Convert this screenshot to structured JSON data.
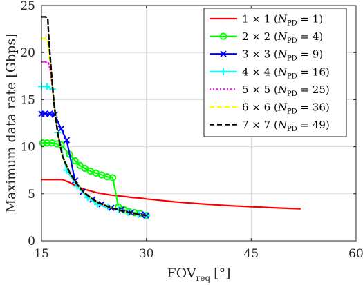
{
  "chart_data": {
    "type": "line",
    "xlabel": {
      "main": "FOV",
      "sub": "req",
      "unit": "[°]"
    },
    "ylabel": "Maximum data rate [Gbps]",
    "xlim": [
      15,
      60
    ],
    "ylim": [
      0,
      25
    ],
    "xticks": [
      15,
      30,
      45,
      60
    ],
    "yticks": [
      0,
      5,
      10,
      15,
      20,
      25
    ],
    "grid": true,
    "legend_position": "top-right",
    "series": [
      {
        "label": "1 × 1 (",
        "label_var": "N",
        "label_sub": "PD",
        "label_tail": " = 1)",
        "color": "#ff0000",
        "marker": "none",
        "dash": "solid",
        "points": [
          [
            15,
            6.5
          ],
          [
            16,
            6.5
          ],
          [
            17,
            6.5
          ],
          [
            18,
            6.5
          ],
          [
            19,
            6.2
          ],
          [
            20,
            5.8
          ],
          [
            21,
            5.5
          ],
          [
            22,
            5.3
          ],
          [
            23,
            5.1
          ],
          [
            24,
            4.98
          ],
          [
            25,
            4.85
          ],
          [
            26,
            4.78
          ],
          [
            27,
            4.7
          ],
          [
            28,
            4.6
          ],
          [
            29,
            4.55
          ],
          [
            30,
            4.45
          ],
          [
            32,
            4.3
          ],
          [
            34,
            4.15
          ],
          [
            36,
            4.03
          ],
          [
            38,
            3.92
          ],
          [
            40,
            3.82
          ],
          [
            42,
            3.73
          ],
          [
            44,
            3.66
          ],
          [
            46,
            3.59
          ],
          [
            48,
            3.52
          ],
          [
            50,
            3.45
          ],
          [
            52,
            3.4
          ]
        ]
      },
      {
        "label": "2 × 2 (",
        "label_var": "N",
        "label_sub": "PD",
        "label_tail": " = 4)",
        "color": "#00ff00",
        "marker": "circle",
        "dash": "solid",
        "points": [
          [
            15.2,
            10.4
          ],
          [
            15.8,
            10.4
          ],
          [
            16.5,
            10.4
          ],
          [
            17.2,
            10.3
          ],
          [
            17.8,
            10.2
          ],
          [
            19,
            9.2
          ],
          [
            19.8,
            8.5
          ],
          [
            20.5,
            8.0
          ],
          [
            21.2,
            7.7
          ],
          [
            22,
            7.4
          ],
          [
            22.8,
            7.2
          ],
          [
            23.6,
            7.0
          ],
          [
            24.4,
            6.8
          ],
          [
            25.2,
            6.7
          ],
          [
            26,
            3.6
          ],
          [
            26.8,
            3.3
          ],
          [
            27.5,
            3.1
          ],
          [
            28.3,
            3.0
          ],
          [
            29.1,
            2.9
          ],
          [
            30,
            2.7
          ]
        ]
      },
      {
        "label": "3 × 3 (",
        "label_var": "N",
        "label_sub": "PD",
        "label_tail": " = 9)",
        "color": "#0000ff",
        "marker": "x",
        "dash": "solid",
        "points": [
          [
            15,
            13.5
          ],
          [
            15.5,
            13.5
          ],
          [
            16.2,
            13.5
          ],
          [
            16.9,
            13.4
          ],
          [
            17.8,
            11.9
          ],
          [
            18.6,
            10.7
          ],
          [
            19.8,
            6.4
          ],
          [
            20.9,
            5.2
          ],
          [
            22.3,
            4.4
          ],
          [
            23.6,
            3.9
          ],
          [
            25,
            3.5
          ],
          [
            26.4,
            3.3
          ],
          [
            27.8,
            3.0
          ],
          [
            29.2,
            2.8
          ],
          [
            30,
            2.7
          ]
        ]
      },
      {
        "label": "4 × 4 (",
        "label_var": "N",
        "label_sub": "PD",
        "label_tail": " = 16)",
        "color": "#00ffff",
        "marker": "plus",
        "dash": "solid",
        "points": [
          [
            15,
            16.4
          ],
          [
            15.8,
            16.4
          ],
          [
            16.6,
            16.1
          ],
          [
            17.3,
            11.5
          ],
          [
            18.6,
            7.5
          ],
          [
            20.1,
            5.8
          ],
          [
            21.6,
            4.6
          ],
          [
            23,
            3.9
          ],
          [
            24.5,
            3.6
          ],
          [
            26,
            3.3
          ],
          [
            27.4,
            3.0
          ],
          [
            28.9,
            2.8
          ],
          [
            30,
            2.7
          ]
        ]
      },
      {
        "label": "5 × 5 (",
        "label_var": "N",
        "label_sub": "PD",
        "label_tail": " = 25)",
        "color": "#ff00ff",
        "marker": "none",
        "dash": "dotted",
        "points": [
          [
            15,
            19.0
          ],
          [
            15.5,
            19.0
          ],
          [
            16,
            18.9
          ],
          [
            16.3,
            18.0
          ],
          [
            16.8,
            14.5
          ],
          [
            17.3,
            11.5
          ],
          [
            18,
            9.0
          ],
          [
            19,
            7.3
          ],
          [
            20,
            6.1
          ],
          [
            21,
            5.2
          ],
          [
            22,
            4.6
          ],
          [
            23,
            4.1
          ],
          [
            24,
            3.8
          ],
          [
            25,
            3.5
          ],
          [
            26,
            3.3
          ],
          [
            27,
            3.1
          ],
          [
            28,
            2.95
          ],
          [
            29,
            2.8
          ],
          [
            30,
            2.7
          ]
        ]
      },
      {
        "label": "6 × 6 (",
        "label_var": "N",
        "label_sub": "PD",
        "label_tail": " = 36)",
        "color": "#ffff00",
        "marker": "none",
        "dash": "dashed",
        "points": [
          [
            15,
            21.5
          ],
          [
            15.5,
            21.5
          ],
          [
            15.9,
            21.3
          ],
          [
            16.3,
            18.5
          ],
          [
            16.8,
            14.5
          ],
          [
            17.3,
            11.5
          ],
          [
            18,
            9.0
          ],
          [
            19,
            7.3
          ],
          [
            20,
            6.1
          ],
          [
            21,
            5.2
          ],
          [
            22,
            4.6
          ],
          [
            23,
            4.1
          ],
          [
            24,
            3.8
          ],
          [
            25,
            3.5
          ],
          [
            26,
            3.3
          ],
          [
            27,
            3.1
          ],
          [
            28,
            2.95
          ],
          [
            29,
            2.8
          ],
          [
            30,
            2.7
          ]
        ]
      },
      {
        "label": "7 × 7 (",
        "label_var": "N",
        "label_sub": "PD",
        "label_tail": " = 49)",
        "color": "#000000",
        "marker": "none",
        "dash": "dashed",
        "points": [
          [
            15,
            23.8
          ],
          [
            15.6,
            23.8
          ],
          [
            15.9,
            23.6
          ],
          [
            16.1,
            21.0
          ],
          [
            16.4,
            18.0
          ],
          [
            16.8,
            14.5
          ],
          [
            17.3,
            11.5
          ],
          [
            18,
            9.0
          ],
          [
            19,
            7.3
          ],
          [
            20,
            6.1
          ],
          [
            21,
            5.2
          ],
          [
            22,
            4.6
          ],
          [
            23,
            4.1
          ],
          [
            24,
            3.8
          ],
          [
            25,
            3.5
          ],
          [
            26,
            3.3
          ],
          [
            27,
            3.1
          ],
          [
            28,
            2.95
          ],
          [
            29,
            2.8
          ],
          [
            30,
            2.7
          ]
        ]
      }
    ]
  }
}
